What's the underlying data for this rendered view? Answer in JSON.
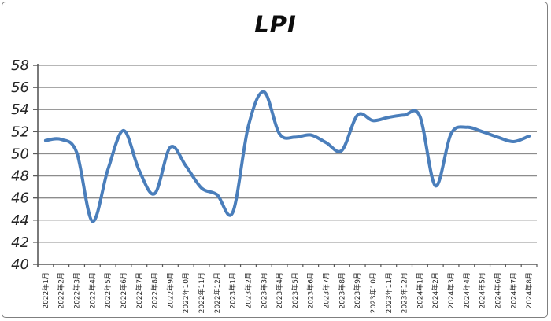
{
  "chart_title": "LPI",
  "chart_data": {
    "type": "line",
    "title": "LPI",
    "smoothed": true,
    "legend": "none",
    "grid": "horizontal",
    "xlabel": "",
    "ylabel": "",
    "ylim": [
      40,
      58
    ],
    "ytick_step": 2,
    "yticks": [
      "58",
      "56",
      "54",
      "52",
      "50",
      "48",
      "46",
      "44",
      "42",
      "40"
    ],
    "categories": [
      "2022年1月",
      "2022年2月",
      "2022年3月",
      "2022年4月",
      "2022年5月",
      "2022年6月",
      "2022年7月",
      "2022年8月",
      "2022年9月",
      "2022年10月",
      "2022年11月",
      "2022年12月",
      "2023年1月",
      "2023年2月",
      "2023年3月",
      "2023年4月",
      "2023年5月",
      "2023年6月",
      "2023年7月",
      "2023年8月",
      "2023年9月",
      "2023年10月",
      "2023年11月",
      "2023年12月",
      "2024年1月",
      "2024年2月",
      "2024年3月",
      "2024年4月",
      "2024年5月",
      "2024年6月",
      "2024年7月",
      "2024年8月"
    ],
    "values": [
      51.2,
      51.3,
      50.1,
      43.9,
      48.6,
      52.1,
      48.5,
      46.4,
      50.6,
      48.9,
      46.9,
      46.3,
      44.7,
      52.5,
      55.6,
      51.8,
      51.5,
      51.7,
      51.0,
      50.3,
      53.5,
      53.0,
      53.3,
      53.5,
      53.4,
      47.1,
      51.8,
      52.4,
      52.0,
      51.5,
      51.1,
      51.6
    ],
    "colors": {
      "line": "#4A7EBB",
      "gridline": "#8C8C8C",
      "axis": "#595959",
      "labels": "#262626",
      "background": "#FFFFFF",
      "frame_border": "#7F7F7F"
    }
  }
}
